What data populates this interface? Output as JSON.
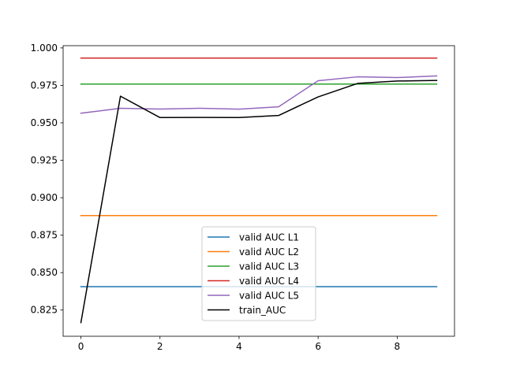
{
  "chart_data": {
    "type": "line",
    "title": "",
    "xlabel": "",
    "ylabel": "",
    "xlim": [
      -0.45,
      9.45
    ],
    "ylim": [
      0.8075,
      1.0015
    ],
    "grid": false,
    "legend_position": "lower-center",
    "x": [
      0,
      1,
      2,
      3,
      4,
      5,
      6,
      7,
      8,
      9
    ],
    "x_ticks": [
      0,
      2,
      4,
      6,
      8
    ],
    "x_tick_labels": [
      "0",
      "2",
      "4",
      "6",
      "8"
    ],
    "y_ticks": [
      0.825,
      0.85,
      0.875,
      0.9,
      0.925,
      0.95,
      0.975,
      1.0
    ],
    "y_tick_labels": [
      "0.825",
      "0.850",
      "0.875",
      "0.900",
      "0.925",
      "0.950",
      "0.975",
      "1.000"
    ],
    "series": [
      {
        "name": "valid AUC L1",
        "color": "#1f77b4",
        "values": [
          0.8406,
          0.8406,
          0.8406,
          0.8406,
          0.8406,
          0.8406,
          0.8406,
          0.8406,
          0.8406,
          0.8406
        ]
      },
      {
        "name": "valid AUC L2",
        "color": "#ff7f0e",
        "values": [
          0.8881,
          0.8881,
          0.8881,
          0.8881,
          0.8881,
          0.8881,
          0.8881,
          0.8881,
          0.8881,
          0.8881
        ]
      },
      {
        "name": "valid AUC L3",
        "color": "#2ca02c",
        "values": [
          0.9759,
          0.9759,
          0.9759,
          0.9759,
          0.9759,
          0.9759,
          0.9759,
          0.9759,
          0.9759,
          0.9759
        ]
      },
      {
        "name": "valid AUC L4",
        "color": "#d62728",
        "values": [
          0.9932,
          0.9932,
          0.9932,
          0.9932,
          0.9932,
          0.9932,
          0.9932,
          0.9932,
          0.9932,
          0.9932
        ]
      },
      {
        "name": "valid AUC L5",
        "color": "#9467bd",
        "values": [
          0.9564,
          0.9597,
          0.9592,
          0.9597,
          0.9591,
          0.9607,
          0.9781,
          0.9807,
          0.9802,
          0.9813
        ]
      },
      {
        "name": "train_AUC",
        "color": "#000000",
        "values": [
          0.8166,
          0.9678,
          0.9535,
          0.9536,
          0.9535,
          0.9549,
          0.9673,
          0.9763,
          0.9779,
          0.9783
        ]
      }
    ]
  }
}
